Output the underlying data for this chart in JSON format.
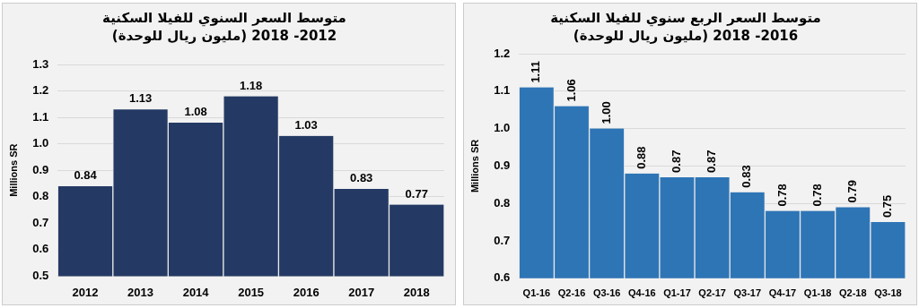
{
  "chart_data": [
    {
      "type": "bar",
      "title": "متوسط السعر السنوي للفيلا السكنية",
      "subtitle": "(مليون ريال للوحدة) 2012- 2018",
      "ylabel": "Millions SR",
      "categories": [
        "2012",
        "2013",
        "2014",
        "2015",
        "2016",
        "2017",
        "2018"
      ],
      "series": [
        {
          "color": "#243a64",
          "values": [
            0.84,
            1.13,
            1.08,
            1.18,
            1.03,
            0.83,
            0.77
          ]
        }
      ],
      "ylim": [
        0.5,
        1.3
      ],
      "yticks": [
        {
          "value": 0.5,
          "label": "0.5"
        },
        {
          "value": 0.6,
          "label": "0.6"
        },
        {
          "value": 0.7,
          "label": "0.7"
        },
        {
          "value": 0.8,
          "label": "0.8"
        },
        {
          "value": 0.9,
          "label": "0.9"
        },
        {
          "value": 1,
          "label": "1.0"
        },
        {
          "value": 1.1,
          "label": "1.1"
        },
        {
          "value": 1.2,
          "label": "1.2"
        },
        {
          "value": 1.3,
          "label": "1.3"
        }
      ],
      "grid": "y",
      "legend": false,
      "data_labels": true
    },
    {
      "type": "bar",
      "title": "متوسط السعر الربع سنوي للفيلا السكنية",
      "subtitle": "(مليون ريال للوحدة) 2016- 2018",
      "ylabel": "Millions SR",
      "categories": [
        "Q1-16",
        "Q2-16",
        "Q3-16",
        "Q4-16",
        "Q1-17",
        "Q2-17",
        "Q3-17",
        "Q4-17",
        "Q1-18",
        "Q2-18",
        "Q3-18"
      ],
      "series": [
        {
          "color": "#2e75b6",
          "values": [
            1.11,
            1.06,
            1.0,
            0.88,
            0.87,
            0.87,
            0.83,
            0.78,
            0.78,
            0.79,
            0.75
          ],
          "value_labels": [
            "1.11",
            "1.06",
            "1.00",
            "0.88",
            "0.87",
            "0.87",
            "0.83",
            "0.78",
            "0.78",
            "0.79",
            "0.75"
          ]
        }
      ],
      "ylim": [
        0.6,
        1.2
      ],
      "yticks": [
        {
          "value": 0.6,
          "label": "0.6"
        },
        {
          "value": 0.7,
          "label": "0.7"
        },
        {
          "value": 0.8,
          "label": "0.8"
        },
        {
          "value": 0.9,
          "label": "0.9"
        },
        {
          "value": 1,
          "label": "1.0"
        },
        {
          "value": 1.1,
          "label": "1.1"
        },
        {
          "value": 1.2,
          "label": "1.2"
        }
      ],
      "grid": "y",
      "legend": false
    }
  ]
}
